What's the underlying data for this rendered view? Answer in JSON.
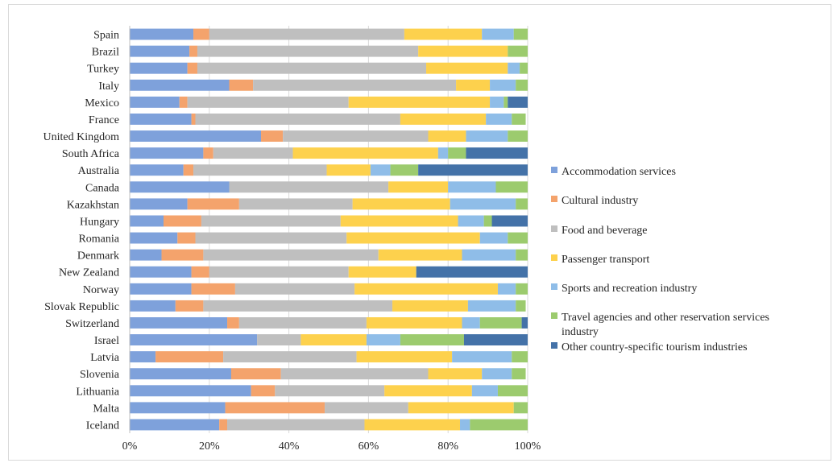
{
  "chart_data": {
    "type": "bar",
    "orientation": "horizontal",
    "stacked": "percent",
    "title": "",
    "xlabel": "",
    "ylabel": "",
    "xlim": [
      0,
      100
    ],
    "x_ticks": [
      "0%",
      "20%",
      "40%",
      "60%",
      "80%",
      "100%"
    ],
    "grid": "vertical",
    "legend_position": "right",
    "categories": [
      "Spain",
      "Brazil",
      "Turkey",
      "Italy",
      "Mexico",
      "France",
      "United Kingdom",
      "South Africa",
      "Australia",
      "Canada",
      "Kazakhstan",
      "Hungary",
      "Romania",
      "Denmark",
      "New Zealand",
      "Norway",
      "Slovak Republic",
      "Switzerland",
      "Israel",
      "Latvia",
      "Slovenia",
      "Lithuania",
      "Malta",
      "Iceland"
    ],
    "series": [
      {
        "name": "Accommodation services",
        "color": "#7ea1db",
        "values": [
          16,
          15,
          14.5,
          25,
          12.5,
          15.5,
          33,
          18.5,
          13.5,
          25,
          14.5,
          8.5,
          12,
          8,
          15.5,
          15.5,
          11.5,
          24.5,
          32,
          6.5,
          25.5,
          30.5,
          24,
          22.5
        ]
      },
      {
        "name": "Cultural industry",
        "color": "#f4a36c",
        "values": [
          4,
          2,
          2.5,
          6,
          2,
          1,
          5.5,
          2.5,
          2.5,
          0,
          13,
          9.5,
          4.5,
          10.5,
          4.5,
          11,
          7,
          3,
          0,
          17,
          12.5,
          6,
          25,
          2
        ]
      },
      {
        "name": "Food and beverage",
        "color": "#bfbfbf",
        "values": [
          49,
          55.5,
          57.5,
          51,
          40.5,
          51.5,
          36.5,
          20,
          33.5,
          40,
          28.5,
          35,
          38,
          44,
          35,
          30,
          47.5,
          32,
          11,
          33.5,
          37,
          27.5,
          21,
          34.5
        ]
      },
      {
        "name": "Passenger transport",
        "color": "#fdd14d",
        "values": [
          19.5,
          22.5,
          20.5,
          8.5,
          35.5,
          21.5,
          9.5,
          36.5,
          11,
          15,
          24.5,
          29.5,
          33.5,
          21,
          17,
          36,
          19,
          24,
          16.5,
          24,
          13.5,
          22,
          26.5,
          24
        ]
      },
      {
        "name": "Sports and recreation industry",
        "color": "#8fbde8",
        "values": [
          8,
          0,
          3,
          6.5,
          3.5,
          6.5,
          10.5,
          2.5,
          5,
          12,
          16.5,
          6.5,
          7,
          13.5,
          0,
          4.5,
          12,
          4.5,
          8.5,
          15,
          7.5,
          6.5,
          0,
          2.5
        ]
      },
      {
        "name": "Travel agencies and other reservation services industry",
        "color": "#9ccb6e",
        "values": [
          3.5,
          5,
          2,
          3,
          1,
          3.5,
          5,
          4.5,
          7,
          8,
          3,
          2,
          5,
          3,
          0,
          3,
          2.5,
          10.5,
          16,
          4,
          3.5,
          7.5,
          3.5,
          14.5
        ]
      },
      {
        "name": "Other country-specific tourism industries",
        "color": "#4472a8",
        "values": [
          0,
          0,
          0,
          0,
          5,
          0,
          0,
          15.5,
          27.5,
          0,
          0,
          9,
          0,
          0,
          28,
          0,
          0,
          1.5,
          16,
          0,
          0,
          0,
          0,
          0
        ]
      }
    ]
  }
}
